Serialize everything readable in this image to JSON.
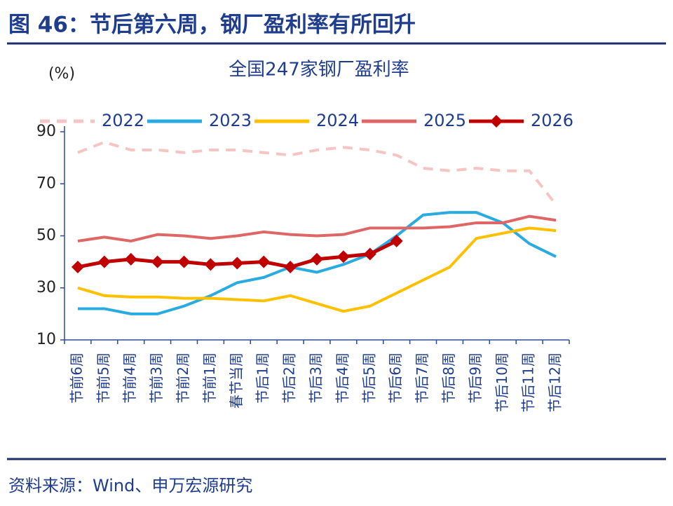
{
  "header": {
    "title": "图 46：节后第六周，钢厂盈利率有所回升"
  },
  "chart_data": {
    "type": "line",
    "title": "全国247家钢厂盈利率",
    "y_label": "(%)",
    "categories": [
      "节前6周",
      "节前5周",
      "节前4周",
      "节前3周",
      "节前2周",
      "节前1周",
      "春节当周",
      "节后1周",
      "节后2周",
      "节后3周",
      "节后4周",
      "节后5周",
      "节后6周",
      "节后7周",
      "节后8周",
      "节后9周",
      "节后10周",
      "节后11周",
      "节后12周"
    ],
    "series": [
      {
        "name": "2022",
        "color": "#f7c4c4",
        "dashed": true,
        "values": [
          82,
          86,
          83,
          83,
          82,
          83,
          83,
          82,
          81,
          83,
          84,
          83,
          81,
          76,
          75,
          76,
          75,
          75,
          62
        ]
      },
      {
        "name": "2023",
        "color": "#29abe2",
        "values": [
          22,
          22,
          20,
          20,
          23,
          27,
          32,
          34,
          38,
          36,
          39,
          43,
          50,
          58,
          59,
          59,
          55,
          47,
          42
        ]
      },
      {
        "name": "2024",
        "color": "#ffc000",
        "values": [
          30,
          27,
          26.5,
          26.5,
          26,
          26,
          25.5,
          25,
          27,
          24,
          21,
          23,
          28,
          33,
          38,
          49,
          51,
          53,
          52
        ]
      },
      {
        "name": "2025",
        "color": "#e06666",
        "values": [
          48,
          49.5,
          48,
          50.5,
          50,
          49,
          50,
          51.5,
          50.5,
          50,
          50.5,
          53,
          53,
          53,
          53.5,
          55,
          55,
          57.5,
          56
        ]
      },
      {
        "name": "2026",
        "color": "#c00000",
        "marker": "diamond",
        "values": [
          38,
          40,
          41,
          40,
          40,
          39,
          39.5,
          40,
          38,
          41,
          42,
          43,
          48,
          null,
          null,
          null,
          null,
          null,
          null
        ]
      }
    ],
    "ylim": [
      10,
      90
    ],
    "yticks": [
      10,
      30,
      50,
      70,
      90
    ],
    "legend": "top"
  },
  "footer": {
    "source": "资料来源：Wind、申万宏源研究"
  }
}
